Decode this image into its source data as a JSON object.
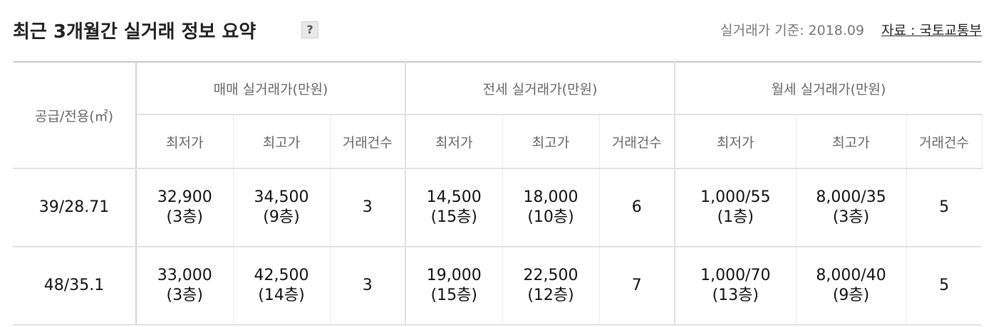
{
  "header": {
    "title": "최근 3개월간 실거래 정보 요약",
    "help_label": "?",
    "basis_label": "실거래가 기준: 2018.09",
    "source_label": "자료 : 국토교통부"
  },
  "table": {
    "area_header": "공급/전용(㎡)",
    "groups": [
      {
        "label": "매매 실거래가(만원)"
      },
      {
        "label": "전세 실거래가(만원)"
      },
      {
        "label": "월세 실거래가(만원)"
      }
    ],
    "sub_headers": [
      "최저가",
      "최고가",
      "거래건수"
    ],
    "rows": [
      {
        "area": "39/28.71",
        "cells": [
          {
            "price": "32,900",
            "floor": "(3층)"
          },
          {
            "price": "34,500",
            "floor": "(9층)"
          },
          {
            "count": "3"
          },
          {
            "price": "14,500",
            "floor": "(15층)"
          },
          {
            "price": "18,000",
            "floor": "(10층)"
          },
          {
            "count": "6"
          },
          {
            "price": "1,000/55",
            "floor": "(1층)"
          },
          {
            "price": "8,000/35",
            "floor": "(3층)"
          },
          {
            "count": "5"
          }
        ]
      },
      {
        "area": "48/35.1",
        "cells": [
          {
            "price": "33,000",
            "floor": "(3층)"
          },
          {
            "price": "42,500",
            "floor": "(14층)"
          },
          {
            "count": "3"
          },
          {
            "price": "19,000",
            "floor": "(15층)"
          },
          {
            "price": "22,500",
            "floor": "(12층)"
          },
          {
            "count": "7"
          },
          {
            "price": "1,000/70",
            "floor": "(13층)"
          },
          {
            "price": "8,000/40",
            "floor": "(9층)"
          },
          {
            "count": "5"
          }
        ]
      }
    ]
  }
}
